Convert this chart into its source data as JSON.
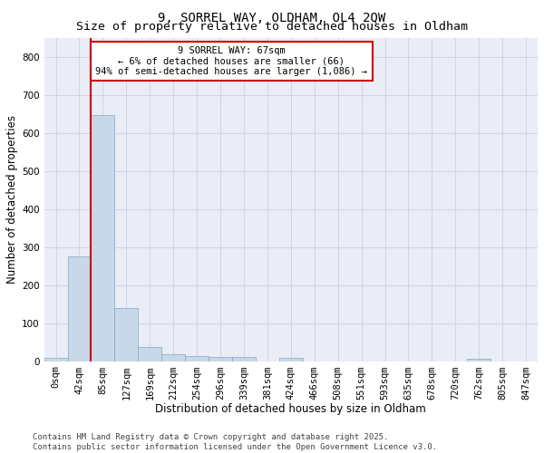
{
  "title1": "9, SORREL WAY, OLDHAM, OL4 2QW",
  "title2": "Size of property relative to detached houses in Oldham",
  "xlabel": "Distribution of detached houses by size in Oldham",
  "ylabel": "Number of detached properties",
  "bins": [
    "0sqm",
    "42sqm",
    "85sqm",
    "127sqm",
    "169sqm",
    "212sqm",
    "254sqm",
    "296sqm",
    "339sqm",
    "381sqm",
    "424sqm",
    "466sqm",
    "508sqm",
    "551sqm",
    "593sqm",
    "635sqm",
    "678sqm",
    "720sqm",
    "762sqm",
    "805sqm",
    "847sqm"
  ],
  "values": [
    8,
    275,
    648,
    140,
    38,
    18,
    12,
    10,
    10,
    0,
    8,
    0,
    0,
    0,
    0,
    0,
    0,
    0,
    5,
    0,
    0
  ],
  "bar_color": "#c8d8e8",
  "bar_edge_color": "#7aaac8",
  "bar_width": 1.0,
  "property_bin_index": 1,
  "property_sqm": 67,
  "red_line_color": "#cc0000",
  "annotation_text": "9 SORREL WAY: 67sqm\n← 6% of detached houses are smaller (66)\n94% of semi-detached houses are larger (1,086) →",
  "annotation_box_color": "#ffffff",
  "annotation_box_edge": "#cc0000",
  "ylim": [
    0,
    850
  ],
  "yticks": [
    0,
    100,
    200,
    300,
    400,
    500,
    600,
    700,
    800
  ],
  "grid_color": "#d0d4e4",
  "background_color": "#eaecf6",
  "footer_line1": "Contains HM Land Registry data © Crown copyright and database right 2025.",
  "footer_line2": "Contains public sector information licensed under the Open Government Licence v3.0.",
  "title_fontsize": 10,
  "subtitle_fontsize": 9.5,
  "axis_label_fontsize": 8.5,
  "tick_fontsize": 7.5,
  "footer_fontsize": 6.5,
  "annotation_fontsize": 7.5
}
